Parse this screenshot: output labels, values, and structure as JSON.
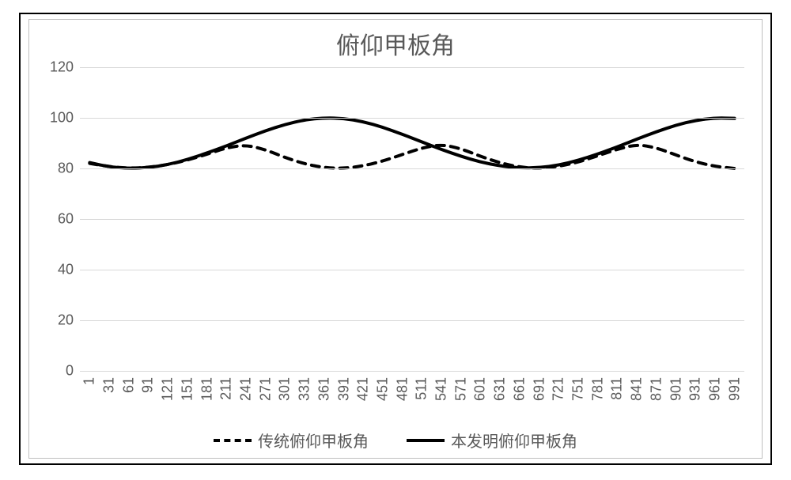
{
  "chart": {
    "type": "line",
    "title": "俯仰甲板角",
    "title_fontsize": 30,
    "title_color": "#595959",
    "background_color": "#ffffff",
    "border_color": "#bfbfbf",
    "outer_border_color": "#000000",
    "grid_color": "#d9d9d9",
    "tick_color": "#595959",
    "tick_fontsize": 18,
    "x": {
      "categories": [
        "1",
        "31",
        "61",
        "91",
        "121",
        "151",
        "181",
        "211",
        "241",
        "271",
        "301",
        "331",
        "361",
        "391",
        "421",
        "451",
        "481",
        "511",
        "541",
        "571",
        "601",
        "631",
        "661",
        "691",
        "721",
        "751",
        "781",
        "811",
        "841",
        "871",
        "901",
        "931",
        "961",
        "991"
      ]
    },
    "y": {
      "min": 0,
      "max": 120,
      "ticks": [
        0,
        20,
        40,
        60,
        80,
        100,
        120
      ]
    },
    "series": [
      {
        "name": "传统俯仰甲板角",
        "color": "#000000",
        "dash": "10,8",
        "width": 4,
        "values": [
          82,
          80.7,
          80.1,
          80.4,
          81.5,
          83.3,
          85.6,
          88.2,
          89.3,
          87.4,
          84.3,
          81.8,
          80.3,
          80,
          81,
          82.9,
          85.5,
          88.1,
          89.5,
          87.8,
          84.8,
          82.2,
          80.5,
          80,
          80.8,
          82.5,
          85.0,
          87.6,
          89.5,
          88.2,
          85.3,
          82.6,
          80.8,
          80.0
        ]
      },
      {
        "name": "本发明俯仰甲板角",
        "color": "#000000",
        "dash": "",
        "width": 4,
        "values": [
          82.3,
          80.6,
          80.0,
          80.3,
          81.5,
          83.5,
          86.1,
          88.9,
          92.0,
          94.9,
          97.4,
          99.2,
          100.0,
          99.8,
          98.5,
          96.3,
          93.5,
          90.5,
          87.5,
          84.8,
          82.5,
          81.0,
          80.2,
          80.3,
          81.3,
          83.2,
          85.7,
          88.5,
          91.6,
          94.5,
          97.1,
          99.0,
          100.0,
          99.8
        ]
      }
    ],
    "legend": {
      "position": "bottom",
      "fontsize": 20,
      "color": "#595959"
    }
  }
}
